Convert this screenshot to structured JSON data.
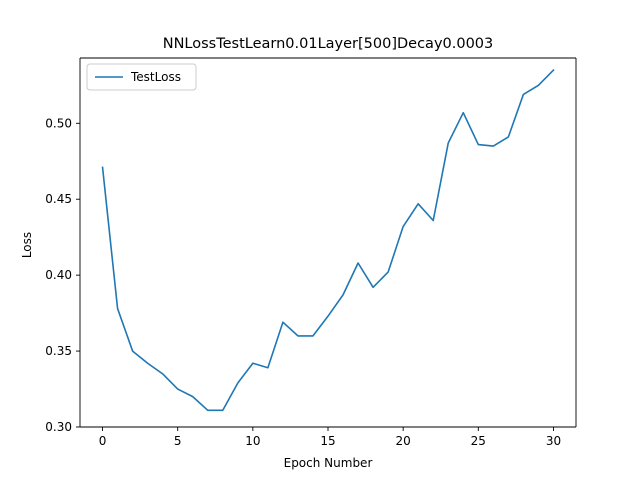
{
  "chart_data": {
    "type": "line",
    "title": "NNLossTestLearn0.01Layer[500]Decay0.0003",
    "xlabel": "Epoch Number",
    "ylabel": "Loss",
    "xlim": [
      -1.5,
      31.5
    ],
    "ylim": [
      0.3,
      0.543
    ],
    "xticks": [
      0,
      5,
      10,
      15,
      20,
      25,
      30
    ],
    "xtick_labels": [
      "0",
      "5",
      "10",
      "15",
      "20",
      "25",
      "30"
    ],
    "yticks": [
      0.3,
      0.35,
      0.4,
      0.45,
      0.5
    ],
    "ytick_labels": [
      "0.30",
      "0.35",
      "0.40",
      "0.45",
      "0.50"
    ],
    "grid": false,
    "legend": {
      "placement": "top-left"
    },
    "series": [
      {
        "name": "TestLoss",
        "color": "#1f77b4",
        "x": [
          0,
          1,
          2,
          3,
          4,
          5,
          6,
          7,
          8,
          9,
          10,
          11,
          12,
          13,
          14,
          15,
          16,
          17,
          18,
          19,
          20,
          21,
          22,
          23,
          24,
          25,
          26,
          27,
          28,
          29,
          30
        ],
        "y": [
          0.471,
          0.378,
          0.35,
          0.342,
          0.335,
          0.325,
          0.32,
          0.311,
          0.311,
          0.329,
          0.342,
          0.339,
          0.369,
          0.36,
          0.36,
          0.373,
          0.387,
          0.408,
          0.392,
          0.402,
          0.432,
          0.447,
          0.436,
          0.487,
          0.507,
          0.486,
          0.485,
          0.491,
          0.519,
          0.525,
          0.535
        ]
      }
    ]
  }
}
